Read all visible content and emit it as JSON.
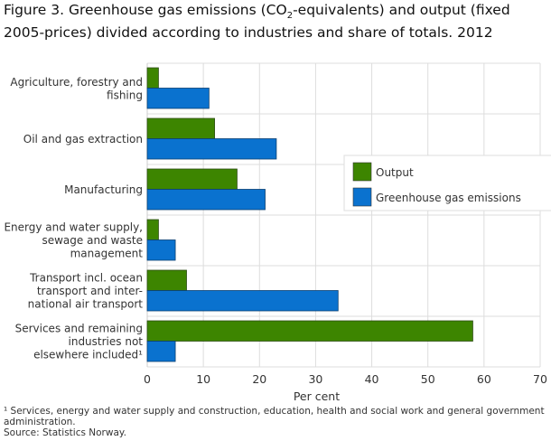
{
  "title": {
    "before_sub": "Figure 3. Greenhouse gas emissions (CO",
    "sub": "2",
    "after_sub": "-equivalents) and output (fixed 2005-prices) divided according to industries and share of totals. 2012"
  },
  "chart_data": {
    "type": "bar",
    "orientation": "horizontal",
    "categories": [
      [
        "Agriculture, forestry and",
        "fishing"
      ],
      [
        "Oil and gas extraction"
      ],
      [
        "Manufacturing"
      ],
      [
        "Energy and water supply,",
        "sewage and waste",
        "management"
      ],
      [
        "Transport incl. ocean",
        "transport and inter-",
        "national  air transport"
      ],
      [
        "Services and remaining",
        "industries not",
        "elsewhere included¹"
      ]
    ],
    "series": [
      {
        "name": "Output",
        "color": "#3d8500",
        "values": [
          2,
          12,
          16,
          2,
          7,
          58
        ]
      },
      {
        "name": "Greenhouse gas emissions",
        "color": "#0a72cf",
        "values": [
          11,
          23,
          21,
          5,
          34,
          5
        ]
      }
    ],
    "xlabel": "Per cent",
    "xlim": [
      0,
      70
    ],
    "xticks": [
      0,
      10,
      20,
      30,
      40,
      50,
      60,
      70
    ],
    "grid": true,
    "legend_position": "right-middle"
  },
  "footnote": [
    "¹ Services, energy and water supply and construction, education, health and social work and general government",
    "administration.",
    "Source: Statistics Norway."
  ]
}
